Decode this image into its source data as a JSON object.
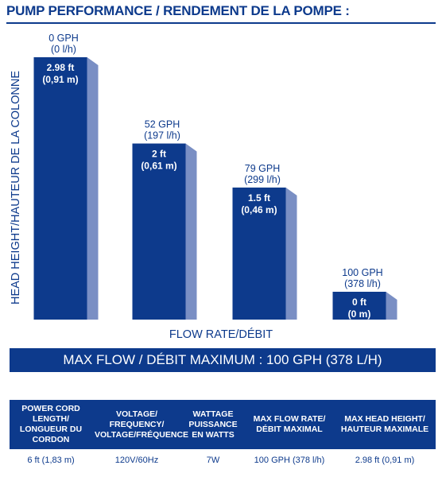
{
  "title": "PUMP PERFORMANCE / RENDEMENT DE LA POMPE :",
  "chart_data": {
    "type": "bar",
    "xlabel": "FLOW RATE/DÉBIT",
    "ylabel": "HEAD HEIGHT/HAUTEUR DE LA COLONNE",
    "ylim": [
      0,
      3.2
    ],
    "categories": [
      {
        "top": "0 GPH",
        "bottom": "(0 l/h)"
      },
      {
        "top": "52 GPH",
        "bottom": "(197 l/h)"
      },
      {
        "top": "79 GPH",
        "bottom": "(299 l/h)"
      },
      {
        "top": "100 GPH",
        "bottom": "(378 l/h)"
      }
    ],
    "values": [
      2.98,
      2,
      1.5,
      0
    ],
    "value_labels": [
      {
        "ft": "2.98 ft",
        "m": "(0,91 m)"
      },
      {
        "ft": "2 ft",
        "m": "(0,61 m)"
      },
      {
        "ft": "1.5 ft",
        "m": "(0,46 m)"
      },
      {
        "ft": "0 ft",
        "m": "(0 m)"
      }
    ],
    "grid": false,
    "legend": "none",
    "colors": {
      "bar": "#0d3a8c",
      "shadow": "#7a8fc4"
    }
  },
  "max_flow": "MAX FLOW / DÉBIT MAXIMUM : 100 GPH (378 L/H)",
  "specs": {
    "headers": [
      [
        "POWER CORD",
        "LENGTH/",
        "LONGUEUR DU",
        "CORDON"
      ],
      [
        "VOLTAGE/",
        "FREQUENCY/",
        "VOLTAGE/FRÉQUENCE"
      ],
      [
        "WATTAGE",
        "PUISSANCE",
        "EN WATTS"
      ],
      [
        "MAX FLOW RATE/",
        "DÉBIT MAXIMAL"
      ],
      [
        "MAX HEAD HEIGHT/",
        "HAUTEUR MAXIMALE"
      ]
    ],
    "values": [
      "6 ft (1,83 m)",
      "120V/60Hz",
      "7W",
      "100 GPH (378 l/h)",
      "2.98 ft (0,91 m)"
    ]
  }
}
